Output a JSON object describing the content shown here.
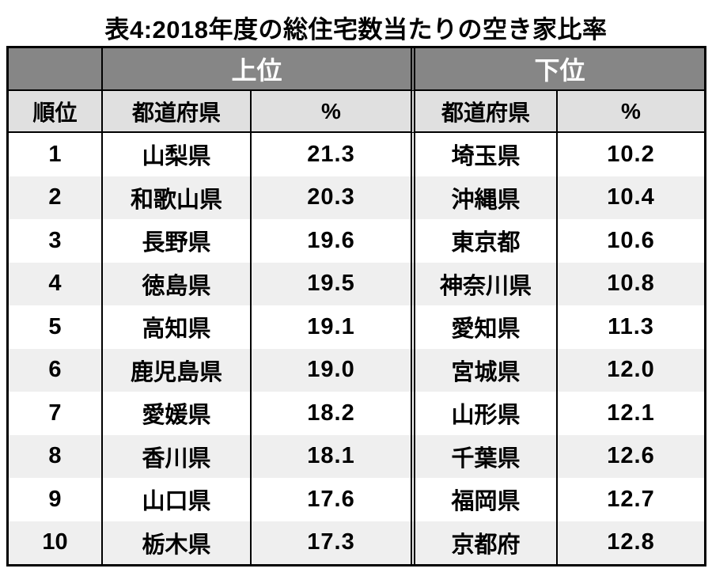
{
  "title": "表4:2018年度の総住宅数当たりの空き家比率",
  "chart_data": {
    "type": "table",
    "title": "表4:2018年度の総住宅数当たりの空き家比率",
    "column_groups": [
      "上位",
      "下位"
    ],
    "columns": [
      "順位",
      "都道府県",
      "%",
      "都道府県",
      "%"
    ],
    "rows": [
      [
        "1",
        "山梨県",
        "21.3",
        "埼玉県",
        "10.2"
      ],
      [
        "2",
        "和歌山県",
        "20.3",
        "沖縄県",
        "10.4"
      ],
      [
        "3",
        "長野県",
        "19.6",
        "東京都",
        "10.6"
      ],
      [
        "4",
        "徳島県",
        "19.5",
        "神奈川県",
        "10.8"
      ],
      [
        "5",
        "高知県",
        "19.1",
        "愛知県",
        "11.3"
      ],
      [
        "6",
        "鹿児島県",
        "19.0",
        "宮城県",
        "12.0"
      ],
      [
        "7",
        "愛媛県",
        "18.2",
        "山形県",
        "12.1"
      ],
      [
        "8",
        "香川県",
        "18.1",
        "千葉県",
        "12.6"
      ],
      [
        "9",
        "山口県",
        "17.6",
        "福岡県",
        "12.7"
      ],
      [
        "10",
        "栃木県",
        "17.3",
        "京都府",
        "12.8"
      ]
    ]
  },
  "colors": {
    "group_header_bg": "#868686",
    "group_header_text": "#ffffff",
    "column_header_bg": "#e0e0e0",
    "row_alt_bg": "#efefef",
    "border": "#000000"
  }
}
